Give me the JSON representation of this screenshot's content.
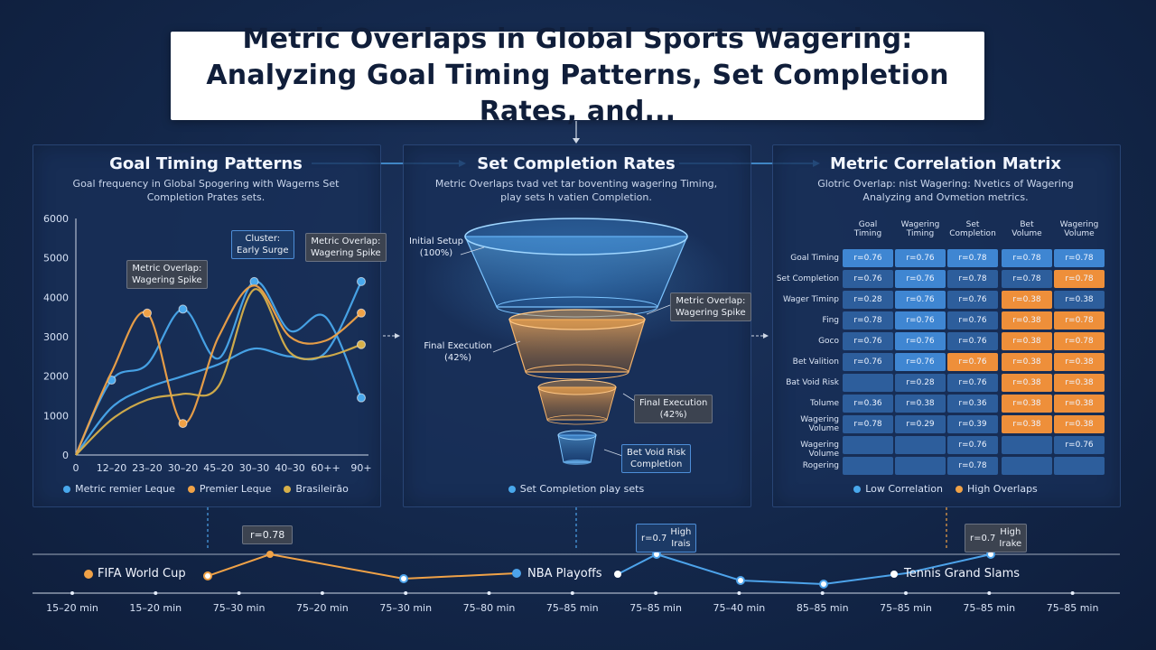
{
  "title": "Metric Overlaps in Global Sports Wagering: Analyzing Goal Timing Patterns, Set Completion Rates, and...",
  "panels": {
    "goal": {
      "title": "Goal Timing Patterns",
      "subtitle_1": "Goal frequency in Global Spogering with Wagerns Set",
      "subtitle_2": "Completion Prates sets.",
      "callouts": {
        "overlap_left_1": "Metric Overlap:",
        "overlap_left_2": "Wagering Spike",
        "cluster_1": "Cluster:",
        "cluster_2": "Early Surge",
        "overlap_right_1": "Metric Overlap:",
        "overlap_right_2": "Wagering Spike"
      },
      "legend": [
        "Metric remier Leque",
        "Premier Lequе",
        "Brasileirão"
      ]
    },
    "set": {
      "title": "Set Completion Rates",
      "subtitle_1": "Metric Overlaps tvad vet tar boventing wagering Timing,",
      "subtitle_2": "play sets h vatien Completion.",
      "labels": {
        "initial_1": "Initial Setup",
        "initial_2": "(100%)",
        "final_left_1": "Final Execution",
        "final_left_2": "(42%)",
        "overlap_1": "Metric Overlap:",
        "overlap_2": "Wagering Spike",
        "final_right_1": "Final Execution",
        "final_right_2": "(42%)",
        "bet_1": "Bet Void Risk",
        "bet_2": "Completion"
      },
      "legend": "Set Completion play sets"
    },
    "matrix": {
      "title": "Metric Correlation Matrix",
      "subtitle_1": "Glotric Overlap: nist Wagering: Nvetics of Wagering",
      "subtitle_2": "Analyzing and Ovmetion metrics.",
      "col_labels": [
        [
          "Goal",
          "Timing"
        ],
        [
          "Wagering",
          "Timing"
        ],
        [
          "Set",
          "Completion"
        ],
        [
          "Bet",
          "Volume"
        ],
        [
          "Wagering",
          "Volume"
        ]
      ],
      "rows": [
        {
          "label": [
            "Goal Timing"
          ],
          "cells": [
            [
              "r=0.76",
              "b"
            ],
            [
              "r=0.76",
              "b"
            ],
            [
              "r=0.78",
              "b"
            ],
            [
              "r=0.78",
              "b"
            ],
            [
              "r=0.78",
              "b"
            ]
          ]
        },
        {
          "label": [
            "Set Completion"
          ],
          "cells": [
            [
              "r=0.76",
              "d"
            ],
            [
              "r=0.76",
              "b"
            ],
            [
              "r=0.78",
              "d"
            ],
            [
              "r=0.78",
              "d"
            ],
            [
              "r=0.78",
              "o"
            ]
          ]
        },
        {
          "label": [
            "Wager Timinp"
          ],
          "cells": [
            [
              "r=0.28",
              "d"
            ],
            [
              "r=0.76",
              "b"
            ],
            [
              "r=0.76",
              "d"
            ],
            [
              "r=0.38",
              "o"
            ],
            [
              "r=0.38",
              "d"
            ]
          ]
        },
        {
          "label": [
            "Fing"
          ],
          "cells": [
            [
              "r=0.78",
              "d"
            ],
            [
              "r=0.76",
              "b"
            ],
            [
              "r=0.76",
              "d"
            ],
            [
              "r=0.38",
              "o"
            ],
            [
              "r=0.78",
              "o"
            ]
          ]
        },
        {
          "label": [
            "Goco"
          ],
          "cells": [
            [
              "r=0.76",
              "d"
            ],
            [
              "r=0.76",
              "b"
            ],
            [
              "r=0.76",
              "d"
            ],
            [
              "r=0.38",
              "o"
            ],
            [
              "r=0.78",
              "o"
            ]
          ]
        },
        {
          "label": [
            "Bet Valition"
          ],
          "cells": [
            [
              "r=0.76",
              "d"
            ],
            [
              "r=0.76",
              "b"
            ],
            [
              "r=0.76",
              "o"
            ],
            [
              "r=0.38",
              "o"
            ],
            [
              "r=0.38",
              "o"
            ]
          ]
        },
        {
          "label": [
            "Bat Void Risk"
          ],
          "cells": [
            [
              "",
              "d"
            ],
            [
              "r=0.28",
              "d"
            ],
            [
              "r=0.76",
              "d"
            ],
            [
              "r=0.38",
              "o"
            ],
            [
              "r=0.38",
              "o"
            ]
          ]
        },
        {
          "label": [
            "Tolume"
          ],
          "cells": [
            [
              "r=0.36",
              "d"
            ],
            [
              "r=0.38",
              "d"
            ],
            [
              "r=0.36",
              "d"
            ],
            [
              "r=0.38",
              "o"
            ],
            [
              "r=0.38",
              "o"
            ]
          ]
        },
        {
          "label": [
            "Wagering",
            "Volume"
          ],
          "cells": [
            [
              "r=0.78",
              "d"
            ],
            [
              "r=0.29",
              "d"
            ],
            [
              "r=0.39",
              "d"
            ],
            [
              "r=0.38",
              "o"
            ],
            [
              "r=0.38",
              "o"
            ]
          ]
        },
        {
          "label": [
            "Wagering Volume"
          ],
          "cells": [
            [
              "",
              "d"
            ],
            [
              "",
              "d"
            ],
            [
              "r=0.76",
              "d"
            ],
            [
              "",
              "d"
            ],
            [
              "r=0.76",
              "d"
            ]
          ]
        },
        {
          "label": [
            "Rogering"
          ],
          "cells": [
            [
              "",
              "d"
            ],
            [
              "",
              "d"
            ],
            [
              "r=0.78",
              "d"
            ],
            [
              "",
              "d"
            ],
            [
              "",
              "d"
            ]
          ]
        }
      ],
      "legend": [
        "Low Correlation",
        "High Overlaps"
      ]
    }
  },
  "timeline": {
    "events": [
      "FIFA World Cup",
      "NBA Playoffs",
      "Tennis Grand Slams"
    ],
    "callouts": {
      "left": "r=0.78",
      "mid_1": "r=0.7",
      "mid_2": "High",
      "mid_3": "Irais",
      "right_1": "r=0.7",
      "right_2": "High",
      "right_3": "Irake"
    },
    "ticks": [
      "15–20 min",
      "15–20 min",
      "75–30 min",
      "75–20 min",
      "75–30 min",
      "75–80 min",
      "75–85 min",
      "75–85 min",
      "75–40 min",
      "85–85 min",
      "75–85 min",
      "75–85 min",
      "75–85 min"
    ]
  },
  "colors": {
    "blue": "#49a8ec",
    "orange": "#f0a247",
    "yellow": "#d7b04a",
    "grey": "#9aa8bc"
  },
  "chart_data": {
    "type": "line",
    "categories": [
      "0",
      "12–20",
      "23–20",
      "30–20",
      "45–20",
      "30–30",
      "40–30",
      "60++",
      "90+"
    ],
    "ylim": [
      0,
      6000
    ],
    "yticks": [
      0,
      1000,
      2000,
      3000,
      4000,
      5000,
      6000
    ],
    "series": [
      {
        "name": "Metric remier Leque",
        "color": "blue",
        "values": [
          0,
          1900,
          2300,
          3700,
          2450,
          4400,
          3150,
          3500,
          1450
        ],
        "markers": [
          1,
          3,
          5,
          8
        ]
      },
      {
        "name": "Metric remier Leque",
        "color": "blue",
        "values": [
          0,
          1200,
          1700,
          2000,
          2300,
          2700,
          2500,
          2600,
          4400
        ],
        "markers": [
          8
        ]
      },
      {
        "name": "Premier Lequе",
        "color": "orange",
        "values": [
          0,
          2100,
          3600,
          800,
          3000,
          4300,
          3000,
          2900,
          3600
        ],
        "markers": [
          2,
          3,
          8
        ]
      },
      {
        "name": "Brasileirão",
        "color": "yellow",
        "values": [
          0,
          900,
          1400,
          1550,
          1750,
          4200,
          2600,
          2500,
          2800
        ],
        "markers": [
          8
        ]
      }
    ]
  }
}
